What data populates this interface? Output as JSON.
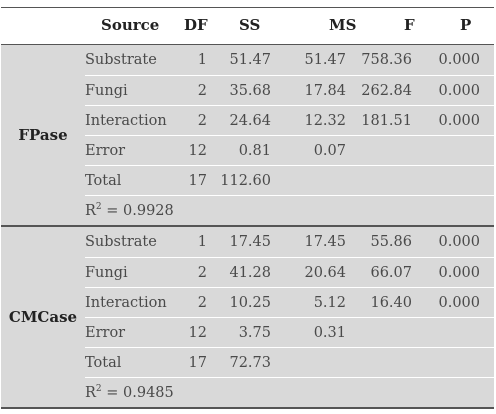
{
  "headers": {
    "source": "Source",
    "df": "DF",
    "ss": "SS",
    "ms": "MS",
    "f": "F",
    "p": "P"
  },
  "groups": [
    {
      "label": "FPase",
      "rows": [
        {
          "source": "Substrate",
          "df": "1",
          "ss": "51.47",
          "ms": "51.47",
          "f": "758.36",
          "p": "0.000"
        },
        {
          "source": "Fungi",
          "df": "2",
          "ss": "35.68",
          "ms": "17.84",
          "f": "262.84",
          "p": "0.000"
        },
        {
          "source": "Interaction",
          "df": "2",
          "ss": "24.64",
          "ms": "12.32",
          "f": "181.51",
          "p": "0.000"
        },
        {
          "source": "Error",
          "df": "12",
          "ss": "0.81",
          "ms": "0.07",
          "f": "",
          "p": ""
        },
        {
          "source": "Total",
          "df": "17",
          "ss": "112.60",
          "ms": "",
          "f": "",
          "p": ""
        }
      ],
      "r2": {
        "prefix": "R",
        "sup": "2",
        "value": " = 0.9928"
      }
    },
    {
      "label": "CMCase",
      "rows": [
        {
          "source": "Substrate",
          "df": "1",
          "ss": "17.45",
          "ms": "17.45",
          "f": "55.86",
          "p": "0.000"
        },
        {
          "source": "Fungi",
          "df": "2",
          "ss": "41.28",
          "ms": "20.64",
          "f": "66.07",
          "p": "0.000"
        },
        {
          "source": "Interaction",
          "df": "2",
          "ss": "10.25",
          "ms": "5.12",
          "f": "16.40",
          "p": "0.000"
        },
        {
          "source": "Error",
          "df": "12",
          "ss": "3.75",
          "ms": "0.31",
          "f": "",
          "p": ""
        },
        {
          "source": "Total",
          "df": "17",
          "ss": "72.73",
          "ms": "",
          "f": "",
          "p": ""
        }
      ],
      "r2": {
        "prefix": "R",
        "sup": "2",
        "value": " = 0.9485"
      }
    }
  ]
}
